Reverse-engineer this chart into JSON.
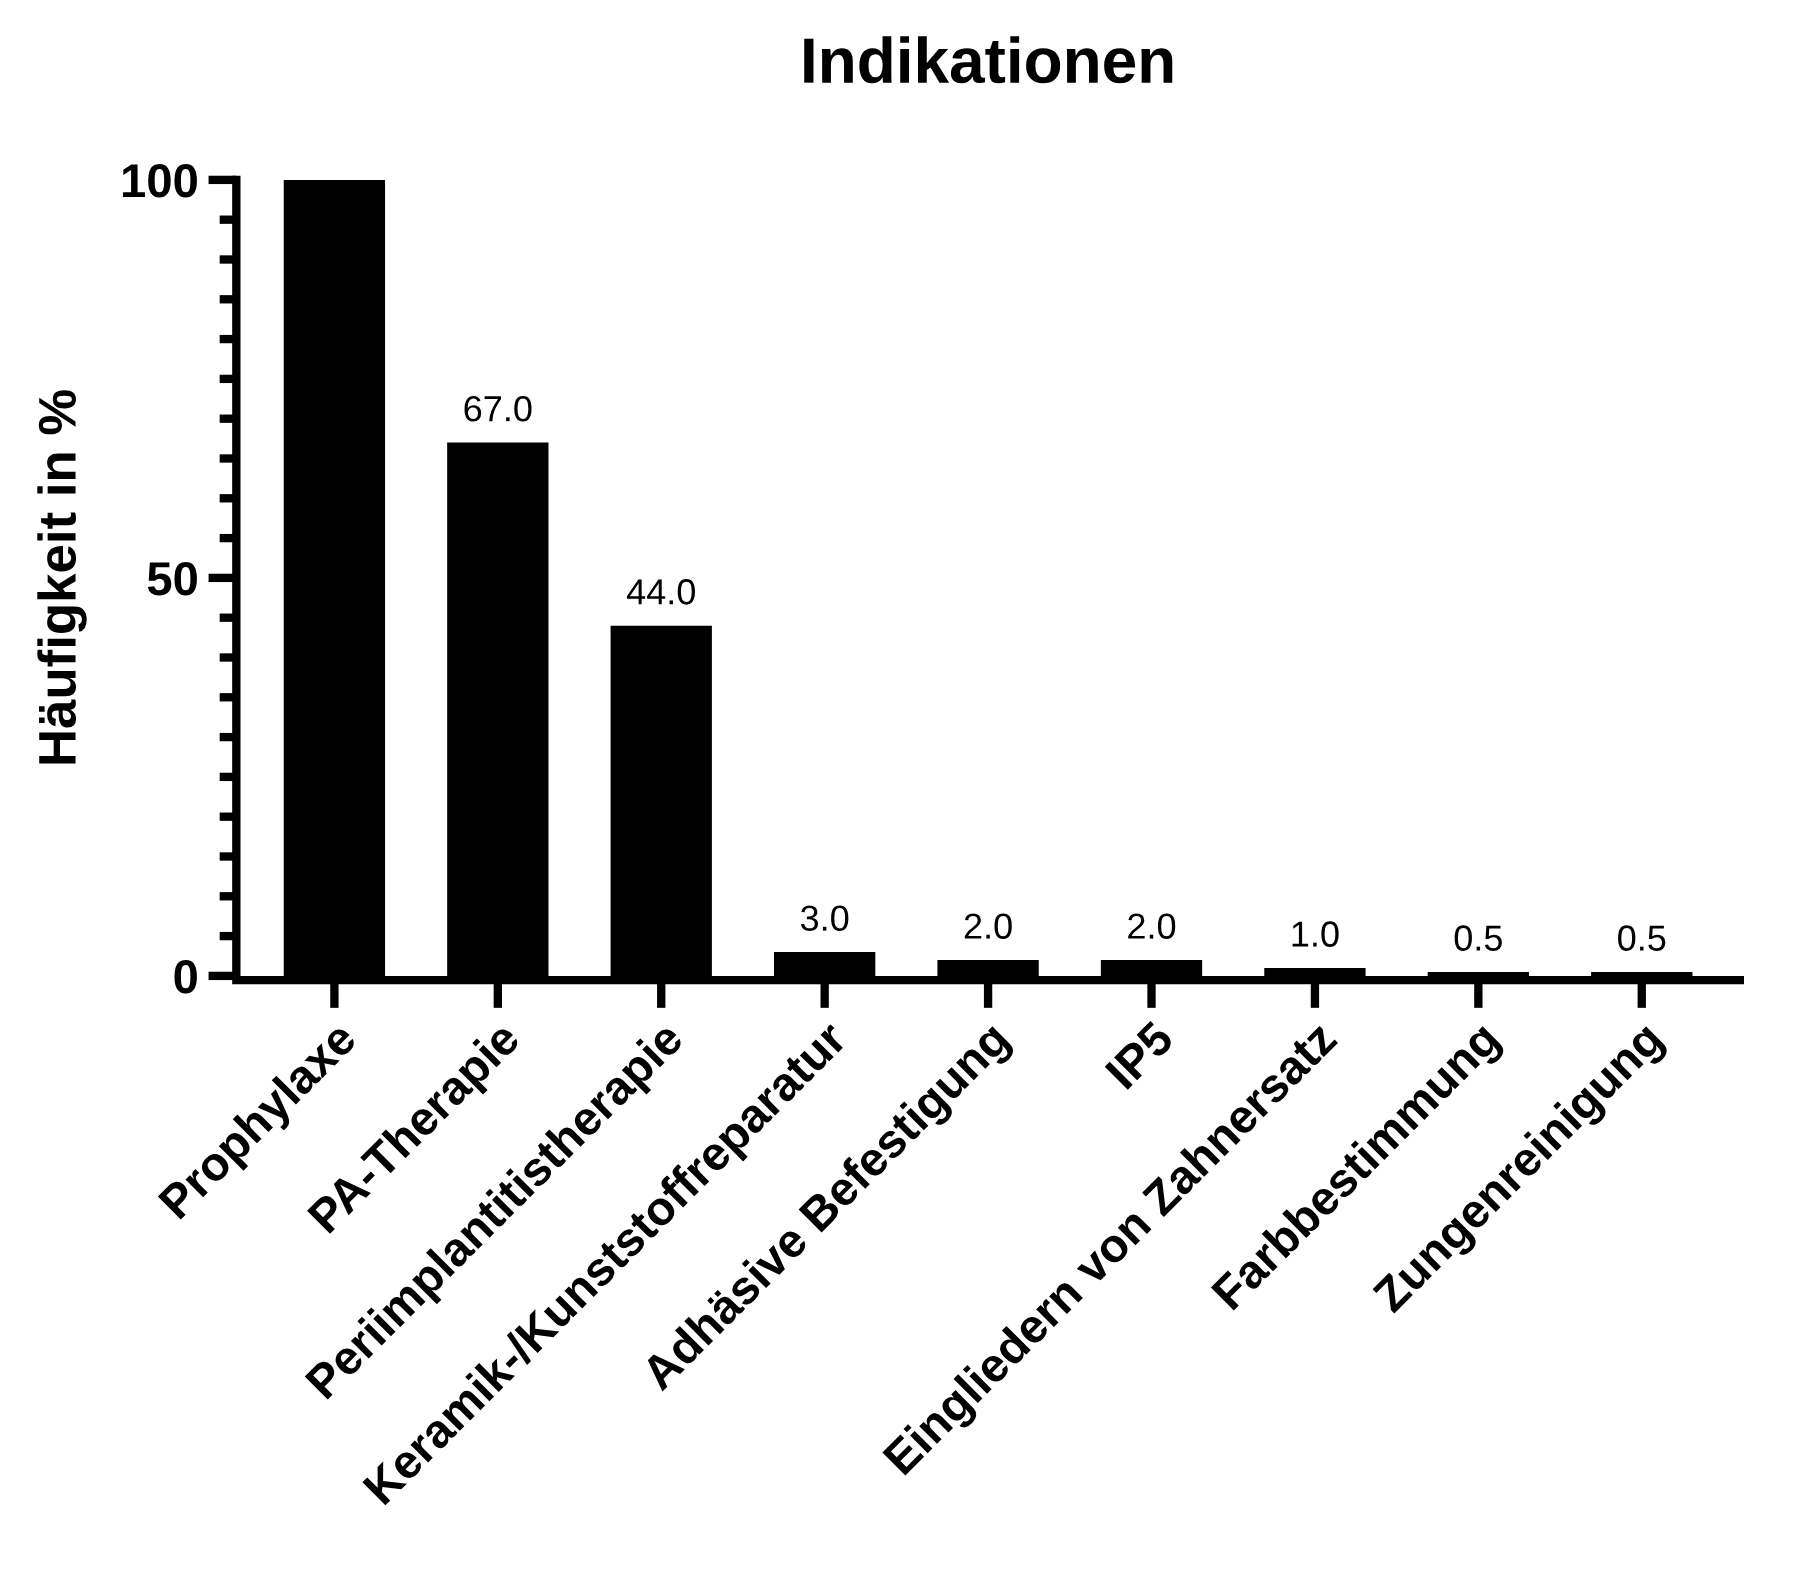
{
  "chart_data": {
    "type": "bar",
    "title": "Indikationen",
    "ylabel": "Häufigkeit in %",
    "categories": [
      "Prophylaxe",
      "PA-Therapie",
      "Periimplantitistherapie",
      "Keramik-/Kunststoffreparatur",
      "Adhäsive Befestigung",
      "IP5",
      "Eingliedern von Zahnersatz",
      "Farbbestimmung",
      "Zungenreinigung"
    ],
    "values": [
      100,
      67.0,
      44.0,
      3.0,
      2.0,
      2.0,
      1.0,
      0.5,
      0.5
    ],
    "value_labels": [
      null,
      "67.0",
      "44.0",
      "3.0",
      "2.0",
      "2.0",
      "1.0",
      "0.5",
      "0.5"
    ],
    "color": "#000000",
    "ylim": [
      0,
      100
    ],
    "yticks": [
      0,
      {
        "value": 5,
        "label": null
      },
      {
        "value": 10,
        "label": null
      },
      {
        "value": 15,
        "label": null
      },
      {
        "value": 20,
        "label": null
      },
      {
        "value": 25,
        "label": null
      },
      {
        "value": 30,
        "label": null
      },
      {
        "value": 35,
        "label": null
      },
      {
        "value": 40,
        "label": null
      },
      {
        "value": 45,
        "label": null
      },
      50,
      {
        "value": 55,
        "label": null
      },
      {
        "value": 60,
        "label": null
      },
      {
        "value": 65,
        "label": null
      },
      {
        "value": 70,
        "label": null
      },
      {
        "value": 75,
        "label": null
      },
      {
        "value": 80,
        "label": null
      },
      {
        "value": 85,
        "label": null
      },
      {
        "value": 90,
        "label": null
      },
      {
        "value": 95,
        "label": null
      },
      100
    ],
    "grid": false,
    "legend": false
  }
}
